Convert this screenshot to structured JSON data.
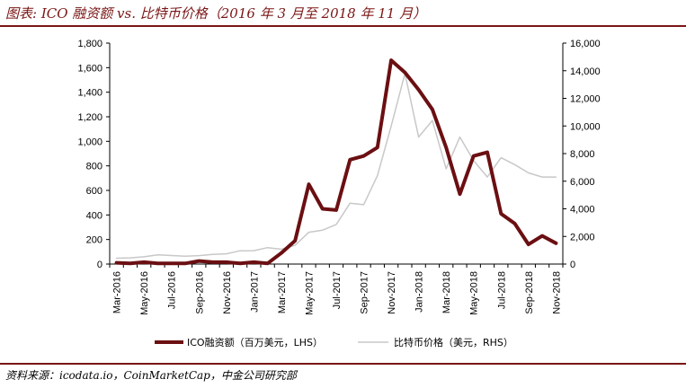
{
  "title": "图表: ICO 融资额 vs. 比特币价格（2016 年 3 月至 2018 年 11 月）",
  "source": "资料来源：icodata.io，CoinMarketCap，中金公司研究部",
  "chart_data": {
    "type": "line",
    "categories": [
      "Mar-2016",
      "Apr-2016",
      "May-2016",
      "Jun-2016",
      "Jul-2016",
      "Aug-2016",
      "Sep-2016",
      "Oct-2016",
      "Nov-2016",
      "Dec-2016",
      "Jan-2017",
      "Feb-2017",
      "Mar-2017",
      "Apr-2017",
      "May-2017",
      "Jun-2017",
      "Jul-2017",
      "Aug-2017",
      "Sep-2017",
      "Oct-2017",
      "Nov-2017",
      "Dec-2017",
      "Jan-2018",
      "Feb-2018",
      "Mar-2018",
      "Apr-2018",
      "May-2018",
      "Jun-2018",
      "Jul-2018",
      "Aug-2018",
      "Sep-2018",
      "Oct-2018",
      "Nov-2018"
    ],
    "x_tick_labels": [
      "Mar-2016",
      "May-2016",
      "Jul-2016",
      "Sep-2016",
      "Nov-2016",
      "Jan-2017",
      "Mar-2017",
      "May-2017",
      "Jul-2017",
      "Sep-2017",
      "Nov-2017",
      "Jan-2018",
      "Mar-2018",
      "May-2018",
      "Jul-2018",
      "Sep-2018",
      "Nov-2018"
    ],
    "series": [
      {
        "name": "ICO融资额（百万美元，LHS）",
        "axis": "left",
        "color": "#6b0f12",
        "values": [
          10,
          5,
          15,
          5,
          5,
          5,
          25,
          15,
          15,
          5,
          15,
          5,
          90,
          190,
          650,
          450,
          440,
          850,
          880,
          950,
          1660,
          1560,
          1420,
          1260,
          950,
          570,
          880,
          910,
          410,
          330,
          160,
          230,
          170
        ]
      },
      {
        "name": "比特币价格（美元，RHS）",
        "axis": "right",
        "color": "#c8c8c8",
        "values": [
          420,
          450,
          530,
          670,
          620,
          570,
          610,
          700,
          740,
          960,
          970,
          1190,
          1070,
          1350,
          2300,
          2450,
          2870,
          4400,
          4300,
          6400,
          10000,
          13800,
          9200,
          10400,
          6900,
          9200,
          7500,
          6300,
          7700,
          7200,
          6600,
          6300,
          6300
        ]
      }
    ],
    "y_left": {
      "min": 0,
      "max": 1800,
      "step": 200,
      "tick_labels": [
        "0",
        "200",
        "400",
        "600",
        "800",
        "1,000",
        "1,200",
        "1,400",
        "1,600",
        "1,800"
      ]
    },
    "y_right": {
      "min": 0,
      "max": 16000,
      "step": 2000,
      "tick_labels": [
        "0",
        "2,000",
        "4,000",
        "6,000",
        "8,000",
        "10,000",
        "12,000",
        "14,000",
        "16,000"
      ]
    },
    "legend_position": "bottom",
    "grid": false
  }
}
